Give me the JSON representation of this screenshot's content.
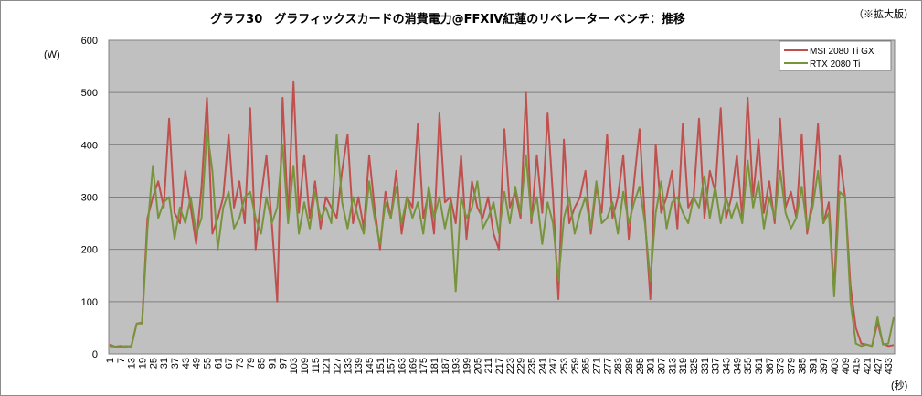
{
  "chart_data": {
    "type": "line",
    "title": "グラフ30　グラフィックスカードの消費電力@FFXIV紅蓮のリベレーター ベンチ：推移",
    "note": "（※拡大版）",
    "xlabel": "(秒)",
    "ylabel": "(W)",
    "ylim": [
      0,
      600
    ],
    "y_ticks": [
      0,
      100,
      200,
      300,
      400,
      500,
      600
    ],
    "x_range": [
      1,
      436
    ],
    "x_step": 3,
    "x_tick_labels": [
      "1",
      "7",
      "13",
      "19",
      "25",
      "31",
      "37",
      "43",
      "49",
      "55",
      "61",
      "67",
      "73",
      "79",
      "85",
      "91",
      "97",
      "103",
      "109",
      "115",
      "121",
      "127",
      "133",
      "139",
      "145",
      "151",
      "157",
      "163",
      "169",
      "175",
      "181",
      "187",
      "193",
      "199",
      "205",
      "211",
      "217",
      "223",
      "229",
      "235",
      "241",
      "247",
      "253",
      "259",
      "265",
      "271",
      "277",
      "283",
      "289",
      "295",
      "301",
      "307",
      "313",
      "319",
      "325",
      "331",
      "337",
      "343",
      "349",
      "355",
      "361",
      "367",
      "373",
      "379",
      "385",
      "391",
      "397",
      "403",
      "409",
      "415",
      "421",
      "427",
      "433"
    ],
    "grid": true,
    "legend_position": "top-right",
    "colors": {
      "background": "#c0c0c0",
      "grid": "#808080"
    },
    "series": [
      {
        "name": "MSI 2080 Ti GX",
        "color": "#c0504d",
        "values": [
          18,
          14,
          15,
          14,
          15,
          58,
          60,
          260,
          300,
          330,
          280,
          450,
          270,
          250,
          350,
          280,
          210,
          320,
          490,
          230,
          260,
          300,
          420,
          280,
          330,
          250,
          470,
          200,
          300,
          380,
          250,
          100,
          490,
          260,
          520,
          270,
          380,
          260,
          330,
          240,
          300,
          280,
          260,
          350,
          420,
          250,
          300,
          240,
          380,
          280,
          200,
          310,
          260,
          350,
          230,
          300,
          280,
          440,
          260,
          310,
          230,
          460,
          290,
          300,
          250,
          380,
          220,
          330,
          280,
          260,
          300,
          230,
          200,
          430,
          280,
          310,
          260,
          500,
          250,
          380,
          270,
          460,
          300,
          105,
          410,
          250,
          280,
          300,
          350,
          230,
          320,
          270,
          420,
          260,
          300,
          380,
          220,
          330,
          430,
          260,
          105,
          400,
          270,
          300,
          350,
          240,
          440,
          280,
          300,
          450,
          260,
          350,
          310,
          470,
          260,
          300,
          380,
          260,
          490,
          300,
          410,
          270,
          330,
          250,
          450,
          280,
          310,
          260,
          420,
          230,
          300,
          440,
          250,
          290,
          120,
          380,
          300,
          130,
          50,
          20,
          18,
          15,
          60,
          20,
          15,
          17
        ]
      },
      {
        "name": "RTX 2080 Ti",
        "color": "#77933c",
        "values": [
          15,
          14,
          13,
          15,
          14,
          58,
          58,
          240,
          360,
          260,
          290,
          300,
          220,
          280,
          250,
          300,
          230,
          260,
          430,
          350,
          200,
          280,
          310,
          240,
          260,
          300,
          310,
          260,
          230,
          300,
          250,
          280,
          400,
          250,
          360,
          230,
          290,
          240,
          310,
          260,
          280,
          250,
          420,
          290,
          240,
          300,
          260,
          230,
          330,
          260,
          210,
          290,
          260,
          320,
          250,
          300,
          260,
          290,
          230,
          320,
          260,
          300,
          240,
          290,
          120,
          300,
          260,
          280,
          330,
          240,
          260,
          290,
          230,
          310,
          250,
          320,
          270,
          380,
          260,
          300,
          210,
          290,
          250,
          140,
          260,
          300,
          230,
          270,
          300,
          240,
          330,
          250,
          260,
          290,
          230,
          310,
          250,
          290,
          320,
          250,
          140,
          270,
          330,
          240,
          290,
          300,
          270,
          250,
          300,
          280,
          340,
          260,
          320,
          250,
          300,
          260,
          290,
          250,
          370,
          280,
          330,
          240,
          300,
          260,
          350,
          270,
          240,
          260,
          320,
          240,
          280,
          350,
          250,
          270,
          110,
          310,
          300,
          100,
          20,
          15,
          18,
          15,
          70,
          18,
          20,
          70
        ]
      }
    ]
  }
}
